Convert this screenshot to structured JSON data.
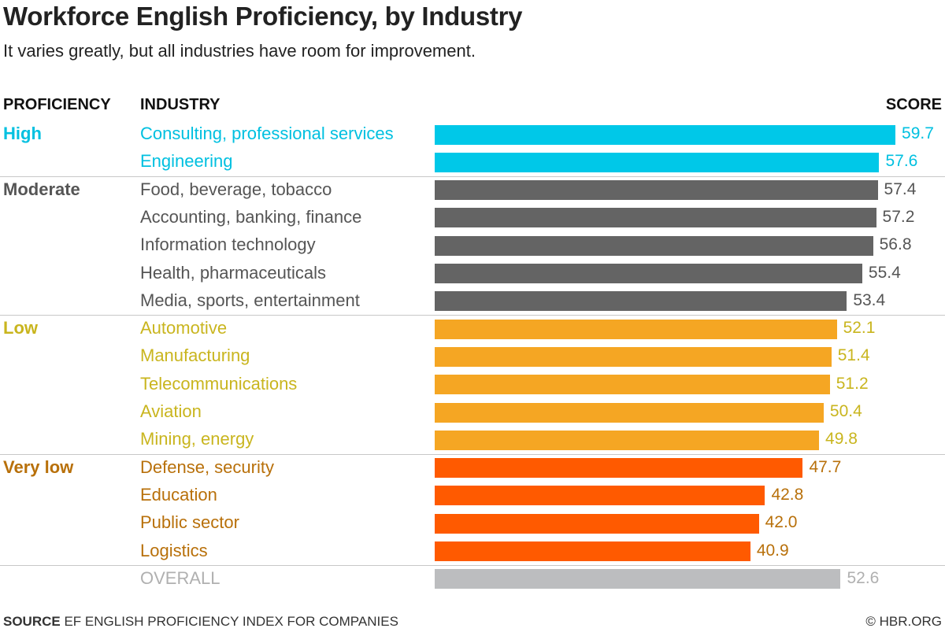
{
  "title": "Workforce English Proficiency, by Industry",
  "subtitle": "It varies greatly, but all industries have room for improvement.",
  "headers": {
    "proficiency": "PROFICIENCY",
    "industry": "INDUSTRY",
    "score": "SCORE"
  },
  "colors": {
    "High": "#00c8e8",
    "Moderate": "#646464",
    "Low": "#f5a623",
    "Very low": "#ff5a00",
    "Overall": "#bcbdbf",
    "text_High": "#00c0e0",
    "text_Moderate": "#555555",
    "text_Low": "#c9b51e",
    "text_Very low": "#b8700a",
    "text_Overall": "#b0b0b0"
  },
  "chart_data": {
    "type": "bar",
    "orientation": "horizontal",
    "xlim": [
      0,
      60
    ],
    "grid": false,
    "groups": [
      {
        "name": "High",
        "items": [
          {
            "industry": "Consulting, professional services",
            "score": 59.7
          },
          {
            "industry": "Engineering",
            "score": 57.6
          }
        ]
      },
      {
        "name": "Moderate",
        "items": [
          {
            "industry": "Food, beverage, tobacco",
            "score": 57.4
          },
          {
            "industry": "Accounting, banking, finance",
            "score": 57.2
          },
          {
            "industry": "Information technology",
            "score": 56.8
          },
          {
            "industry": "Health, pharmaceuticals",
            "score": 55.4
          },
          {
            "industry": "Media, sports, entertainment",
            "score": 53.4
          }
        ]
      },
      {
        "name": "Low",
        "items": [
          {
            "industry": "Automotive",
            "score": 52.1
          },
          {
            "industry": "Manufacturing",
            "score": 51.4
          },
          {
            "industry": "Telecommunications",
            "score": 51.2
          },
          {
            "industry": "Aviation",
            "score": 50.4
          },
          {
            "industry": "Mining, energy",
            "score": 49.8
          }
        ]
      },
      {
        "name": "Very low",
        "items": [
          {
            "industry": "Defense, security",
            "score": 47.7
          },
          {
            "industry": "Education",
            "score": 42.8
          },
          {
            "industry": "Public sector",
            "score": 42.0
          },
          {
            "industry": "Logistics",
            "score": 40.9
          }
        ]
      }
    ],
    "overall": {
      "label": "OVERALL",
      "score": 52.6
    }
  },
  "footer": {
    "source_label": "SOURCE",
    "source_text": "EF ENGLISH PROFICIENCY INDEX FOR COMPANIES",
    "credit": "© HBR.ORG"
  }
}
